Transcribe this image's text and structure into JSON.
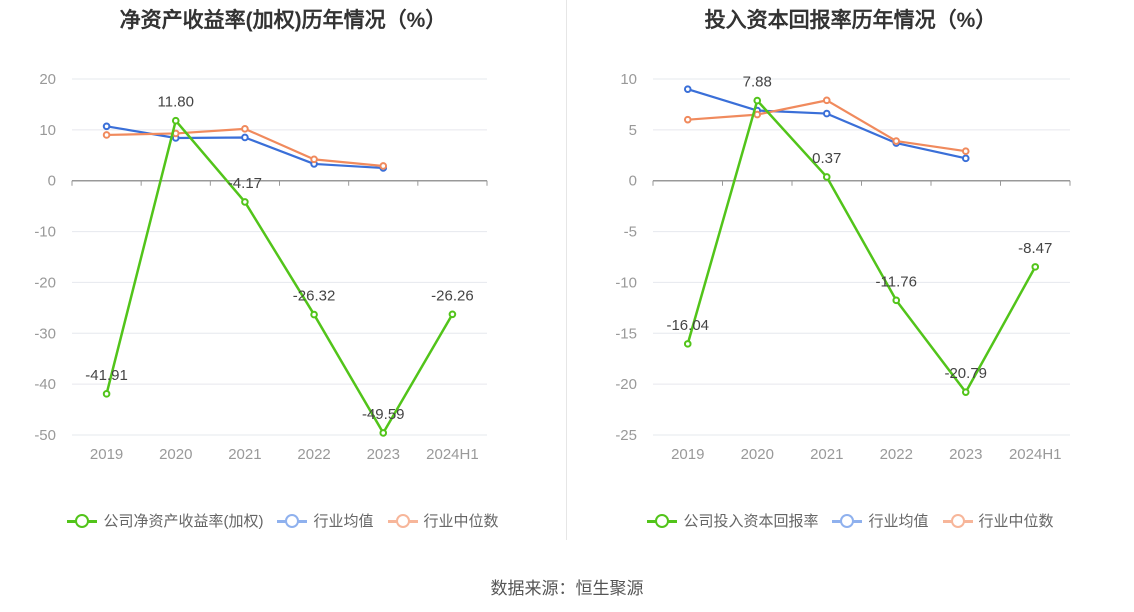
{
  "source_text": "数据来源：恒生聚源",
  "colors": {
    "company": "#52c41a",
    "industry_avg": "#3a6fd8",
    "industry_median": "#f08a5d",
    "legend_avg": "#8fb1ee",
    "legend_median": "#f7b69a",
    "grid": "#e6e8ee",
    "axis": "#999999",
    "label": "#999999",
    "value_label": "#444444"
  },
  "chart_data": [
    {
      "type": "line",
      "title": "净资产收益率(加权)历年情况（%）",
      "categories": [
        "2019",
        "2020",
        "2021",
        "2022",
        "2023",
        "2024H1"
      ],
      "ylim": [
        -50,
        20
      ],
      "yticks": [
        20,
        10,
        0,
        -10,
        -20,
        -30,
        -40,
        -50
      ],
      "legend_position": "bottom",
      "series": [
        {
          "name": "公司净资产收益率(加权)",
          "values": [
            -41.91,
            11.8,
            -4.17,
            -26.32,
            -49.59,
            -26.26
          ],
          "labels": [
            "-41.91",
            "11.80",
            "-4.17",
            "-26.32",
            "-49.59",
            "-26.26"
          ],
          "label_pos": [
            "above",
            "above",
            "above",
            "above",
            "above",
            "above"
          ]
        },
        {
          "name": "行业均值",
          "values": [
            10.7,
            8.4,
            8.5,
            3.3,
            2.5,
            null
          ]
        },
        {
          "name": "行业中位数",
          "values": [
            9.0,
            9.3,
            10.2,
            4.2,
            2.9,
            null
          ]
        }
      ]
    },
    {
      "type": "line",
      "title": "投入资本回报率历年情况（%）",
      "categories": [
        "2019",
        "2020",
        "2021",
        "2022",
        "2023",
        "2024H1"
      ],
      "ylim": [
        -25,
        10
      ],
      "yticks": [
        10,
        5,
        0,
        -5,
        -10,
        -15,
        -20,
        -25
      ],
      "legend_position": "bottom",
      "series": [
        {
          "name": "公司投入资本回报率",
          "values": [
            -16.04,
            7.88,
            0.37,
            -11.76,
            -20.79,
            -8.47
          ],
          "labels": [
            "-16.04",
            "7.88",
            "0.37",
            "-11.76",
            "-20.79",
            "-8.47"
          ],
          "label_pos": [
            "above",
            "above",
            "above",
            "above",
            "above",
            "above"
          ]
        },
        {
          "name": "行业均值",
          "values": [
            9.0,
            6.9,
            6.6,
            3.7,
            2.2,
            null
          ]
        },
        {
          "name": "行业中位数",
          "values": [
            6.0,
            6.5,
            7.9,
            3.9,
            2.9,
            null
          ]
        }
      ]
    }
  ]
}
